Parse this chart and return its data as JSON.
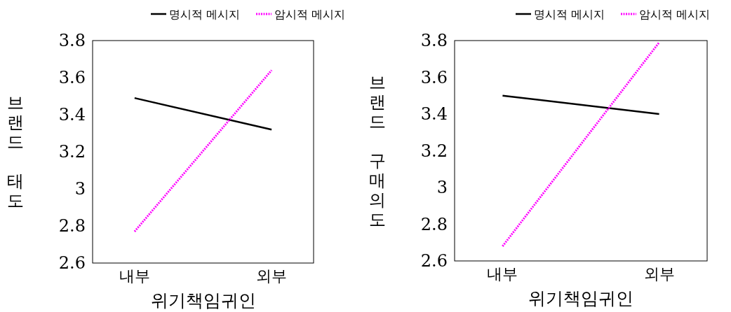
{
  "chart_data": [
    {
      "type": "line",
      "categories": [
        "내부",
        "외부"
      ],
      "xlabel": "위기책임귀인",
      "ylabel": "브랜드 태도",
      "ylim": [
        2.6,
        3.8
      ],
      "yticks": [
        2.6,
        2.8,
        3,
        3.2,
        3.4,
        3.6,
        3.8
      ],
      "legend": "top",
      "series": [
        {
          "name": "명시적 메시지",
          "color": "#000000",
          "line_style": "solid",
          "values": [
            3.49,
            3.32
          ]
        },
        {
          "name": "암시적 메시지",
          "color": "#ff00ff",
          "line_style": "dotted",
          "values": [
            2.77,
            3.64
          ]
        }
      ]
    },
    {
      "type": "line",
      "categories": [
        "내부",
        "외부"
      ],
      "xlabel": "위기책임귀인",
      "ylabel": "브랜드 구매의도",
      "ylim": [
        2.6,
        3.8
      ],
      "yticks": [
        2.6,
        2.8,
        3,
        3.2,
        3.4,
        3.6,
        3.8
      ],
      "legend": "top",
      "series": [
        {
          "name": "명시적 메시지",
          "color": "#000000",
          "line_style": "solid",
          "values": [
            3.5,
            3.4
          ]
        },
        {
          "name": "암시적 메시지",
          "color": "#ff00ff",
          "line_style": "dotted",
          "values": [
            2.68,
            3.79
          ]
        }
      ]
    }
  ]
}
